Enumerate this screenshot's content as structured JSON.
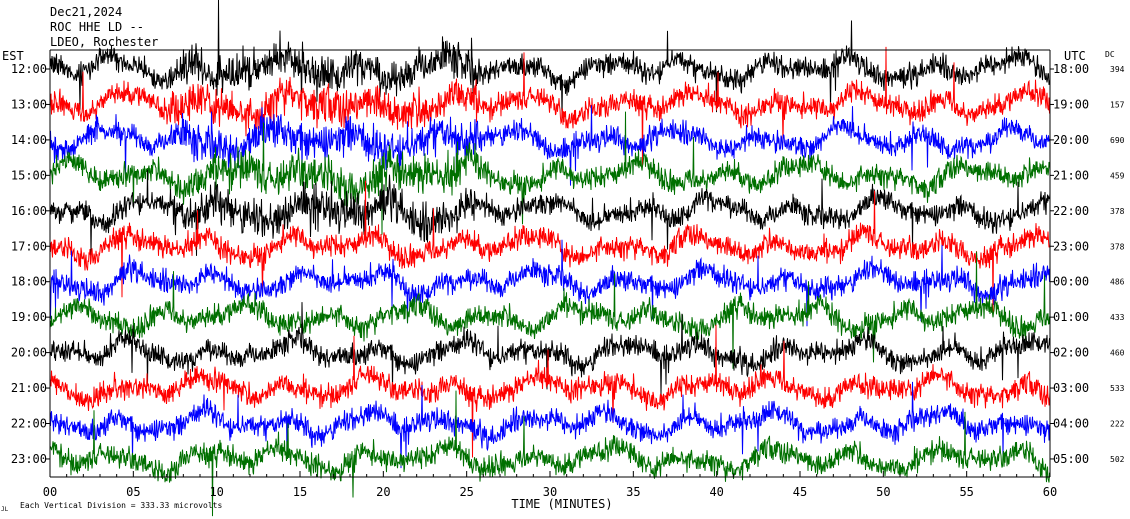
{
  "header": {
    "date": "Dec21,2024",
    "station": "ROC HHE LD --",
    "network": "LDEO, Rochester"
  },
  "footer": {
    "scale_note": "Each Vertical Division =  333.33 microvolts",
    "corner_mark": "JL"
  },
  "chart_data": {
    "type": "line",
    "title": "",
    "left_axis_label": "EST",
    "right_axis_label": "UTC",
    "dc_label": "DC",
    "xlabel": "TIME (MINUTES)",
    "x_ticks": [
      "00",
      "05",
      "10",
      "15",
      "20",
      "25",
      "30",
      "35",
      "40",
      "45",
      "50",
      "55",
      "60"
    ],
    "xlim": [
      0,
      60
    ],
    "trace_colors": [
      "#000000",
      "#ff0000",
      "#0000ff",
      "#007000"
    ],
    "rows": [
      {
        "est": "12:00",
        "utc": "18:00",
        "dc": "394"
      },
      {
        "est": "13:00",
        "utc": "19:00",
        "dc": "157"
      },
      {
        "est": "14:00",
        "utc": "20:00",
        "dc": "690"
      },
      {
        "est": "15:00",
        "utc": "21:00",
        "dc": "459"
      },
      {
        "est": "16:00",
        "utc": "22:00",
        "dc": "378"
      },
      {
        "est": "17:00",
        "utc": "23:00",
        "dc": "378"
      },
      {
        "est": "18:00",
        "utc": "00:00",
        "dc": "486"
      },
      {
        "est": "19:00",
        "utc": "01:00",
        "dc": "433"
      },
      {
        "est": "20:00",
        "utc": "02:00",
        "dc": "460"
      },
      {
        "est": "21:00",
        "utc": "03:00",
        "dc": "533"
      },
      {
        "est": "22:00",
        "utc": "04:00",
        "dc": "222"
      },
      {
        "est": "23:00",
        "utc": "05:00",
        "dc": "502"
      }
    ]
  }
}
